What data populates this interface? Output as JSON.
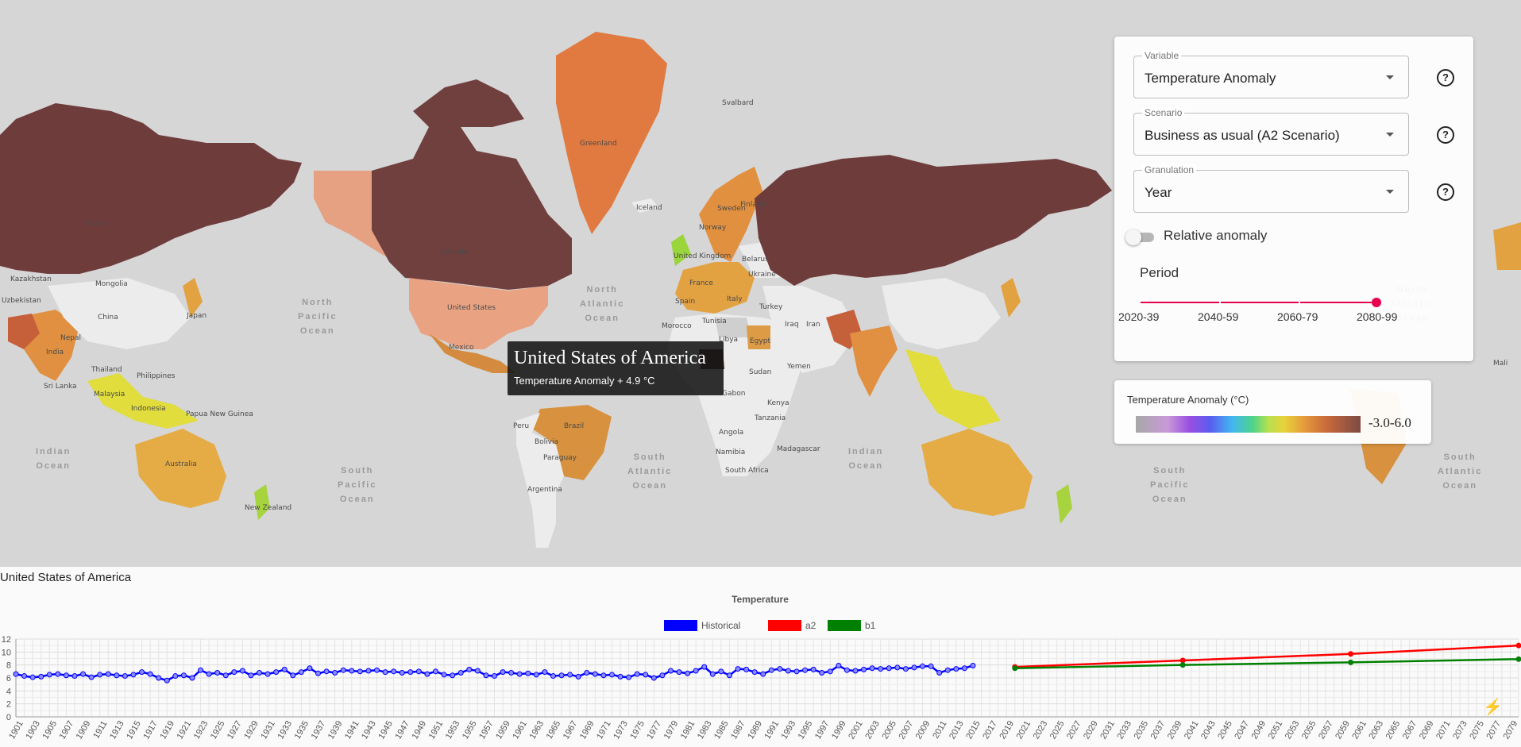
{
  "map": {
    "countries": [
      "Russia",
      "Canada",
      "United States",
      "Greenland",
      "Iceland",
      "Mexico",
      "Brazil",
      "Peru",
      "Bolivia",
      "Paraguay",
      "Argentina",
      "Australia",
      "New Zealand",
      "India",
      "Sri Lanka",
      "China",
      "Mongolia",
      "Kazakhstan",
      "Uzbekistan",
      "Nepal",
      "Thailand",
      "Malaysia",
      "Indonesia",
      "Philippines",
      "Papua New Guinea",
      "Japan",
      "Norway",
      "Sweden",
      "Finland",
      "Svalbard",
      "United Kingdom",
      "France",
      "Spain",
      "Italy",
      "Belarus",
      "Ukraine",
      "Turkey",
      "Morocco",
      "Tunisia",
      "Libya",
      "Egypt",
      "Iraq",
      "Iran",
      "Yemen",
      "Sudan",
      "Kenya",
      "Tanzania",
      "Angola",
      "Namibia",
      "Madagascar",
      "South Africa",
      "Mali",
      "Gabon"
    ],
    "oceans": [
      "North\nPacific\nOcean",
      "North\nAtlantic\nOcean",
      "South\nPacific\nOcean",
      "South\nAtlantic\nOcean",
      "Indian\nOcean"
    ]
  },
  "tooltip": {
    "title": "United States of America",
    "value": "Temperature Anomaly + 4.9 °C"
  },
  "controls": {
    "variable": {
      "label": "Variable",
      "value": "Temperature Anomaly"
    },
    "scenario": {
      "label": "Scenario",
      "value": "Business as usual (A2 Scenario)"
    },
    "granulation": {
      "label": "Granulation",
      "value": "Year"
    },
    "help_icon": "?",
    "relative_anomaly": {
      "label": "Relative anomaly",
      "on": false
    },
    "period": {
      "label": "Period",
      "ticks": [
        "2020-39",
        "2040-59",
        "2060-79",
        "2080-99"
      ],
      "selected": "2080-99"
    }
  },
  "legend": {
    "title": "Temperature Anomaly (°C)",
    "range": "-3.0-6.0"
  },
  "selected_country": "United States of America",
  "fab_icon": "lightning-icon",
  "chart_data": {
    "type": "line",
    "title": "Temperature",
    "ylim": [
      0,
      12
    ],
    "yticks": [
      0,
      2,
      4,
      6,
      8,
      10,
      12
    ],
    "x_start": 1901,
    "x_end": 2080,
    "x_label_step": 2,
    "series": [
      {
        "name": "Historical",
        "color": "#0000ff",
        "x_start": 1901,
        "values": [
          6.6,
          6.3,
          6.1,
          6.2,
          6.5,
          6.6,
          6.4,
          6.3,
          6.6,
          6.1,
          6.5,
          6.6,
          6.4,
          6.3,
          6.5,
          6.9,
          6.6,
          6.0,
          5.6,
          6.3,
          6.4,
          6.0,
          7.2,
          6.6,
          6.8,
          6.4,
          6.9,
          7.1,
          6.4,
          6.8,
          6.6,
          6.9,
          7.3,
          6.4,
          6.9,
          7.5,
          6.7,
          7.0,
          6.8,
          7.2,
          7.1,
          7.0,
          7.1,
          7.2,
          6.9,
          7.0,
          6.8,
          6.9,
          7.0,
          6.6,
          7.0,
          6.5,
          6.4,
          6.8,
          7.3,
          7.1,
          6.4,
          6.3,
          6.9,
          6.8,
          6.6,
          6.7,
          6.5,
          6.9,
          6.3,
          6.4,
          6.5,
          6.2,
          6.8,
          6.6,
          6.4,
          6.5,
          6.2,
          6.1,
          6.6,
          6.5,
          6.0,
          6.4,
          7.1,
          6.9,
          6.7,
          7.1,
          7.7,
          6.6,
          7.0,
          6.4,
          7.4,
          7.3,
          6.9,
          6.6,
          7.2,
          7.4,
          7.1,
          7.0,
          7.2,
          7.3,
          6.8,
          7.0,
          7.9,
          7.2,
          7.1,
          7.3,
          7.5,
          7.4,
          7.5,
          7.6,
          7.4,
          7.6,
          7.8,
          7.8,
          6.8,
          7.2,
          7.4,
          7.5,
          7.9
        ]
      },
      {
        "name": "a2",
        "color": "#ff0000",
        "x": [
          2020,
          2040,
          2060,
          2080
        ],
        "values": [
          7.7,
          8.7,
          9.7,
          11.0
        ]
      },
      {
        "name": "b1",
        "color": "#008000",
        "x": [
          2020,
          2040,
          2060,
          2080
        ],
        "values": [
          7.5,
          8.0,
          8.4,
          8.9
        ]
      }
    ]
  }
}
